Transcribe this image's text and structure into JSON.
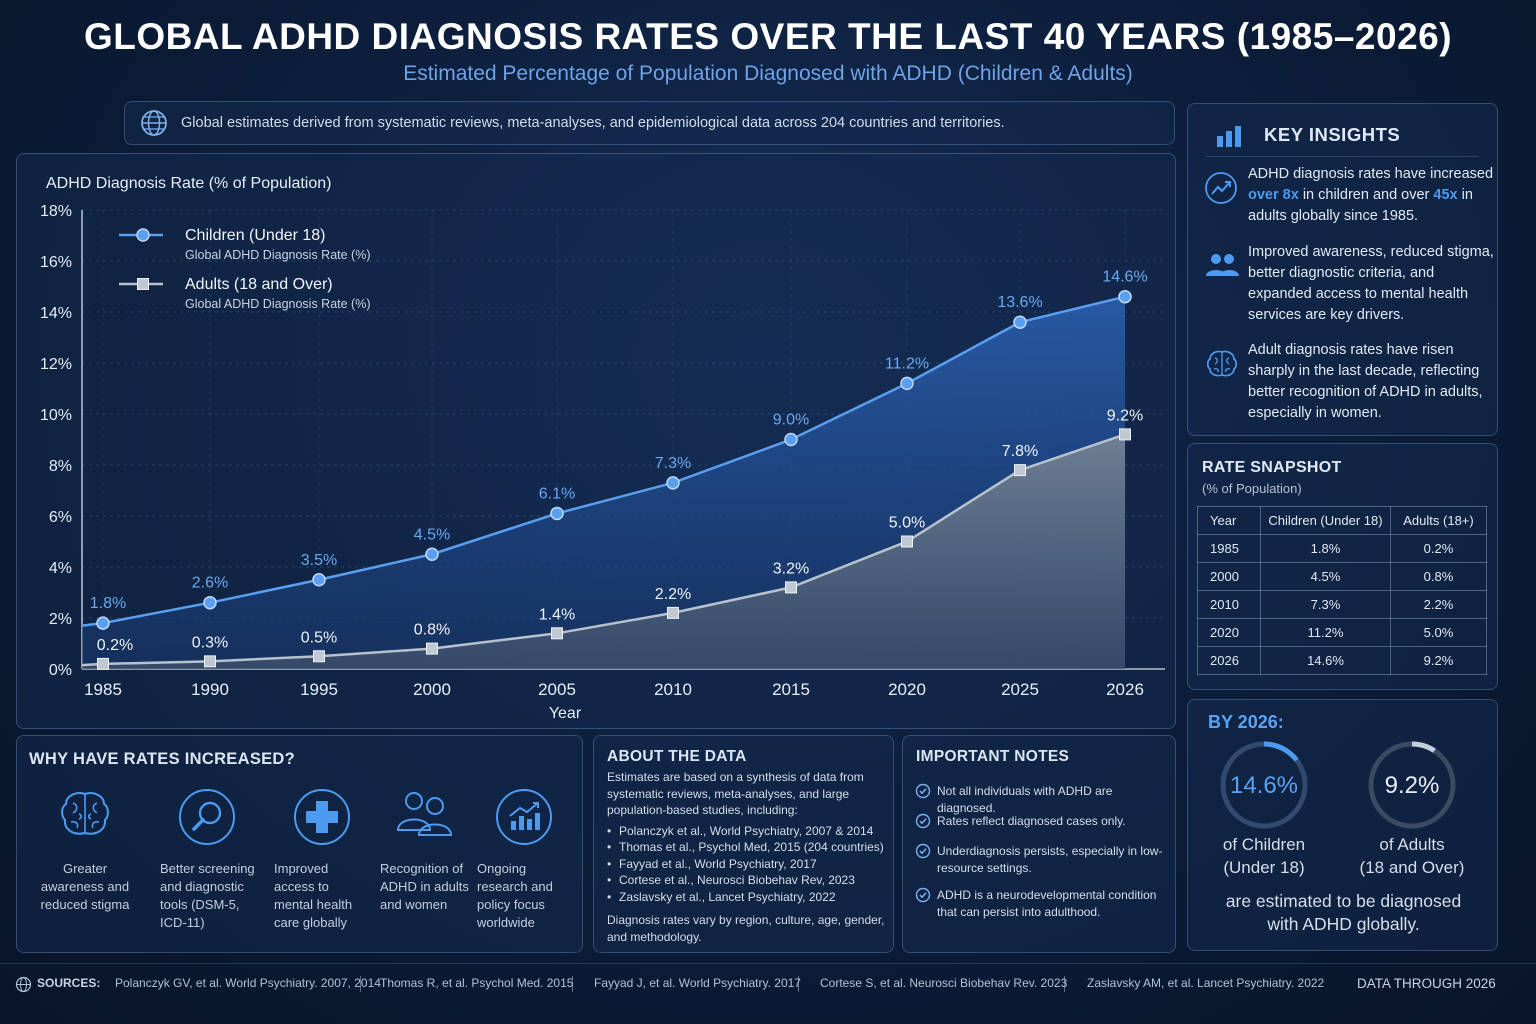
{
  "title": "GLOBAL ADHD DIAGNOSIS RATES OVER THE LAST 40 YEARS (1985–2026)",
  "subtitle": "Estimated Percentage of Population Diagnosed with ADHD (Children & Adults)",
  "info_text": "Global estimates derived from systematic reviews, meta-analyses, and epidemiological data across 204 countries and territories.",
  "colors": {
    "children": "#5a9ff0",
    "adults": "#b8c2cf",
    "accent": "#4d9bf0"
  },
  "chart_data": {
    "type": "area",
    "ylabel": "ADHD Diagnosis Rate (% of Population)",
    "xlabel": "Year",
    "categories": [
      "1985",
      "1990",
      "1995",
      "2000",
      "2005",
      "2010",
      "2015",
      "2020",
      "2025",
      "2026"
    ],
    "ylim": [
      0,
      18
    ],
    "yticks": [
      "0%",
      "2%",
      "4%",
      "6%",
      "8%",
      "10%",
      "12%",
      "14%",
      "16%",
      "18%"
    ],
    "grid": true,
    "legend_position": "top-left",
    "series": [
      {
        "name": "Children (Under 18)",
        "description": "Global ADHD Diagnosis Rate (%)",
        "marker": "circle",
        "values": [
          1.8,
          2.6,
          3.5,
          4.5,
          6.1,
          7.3,
          9.0,
          11.2,
          13.6,
          14.6
        ],
        "labels": [
          "1.8%",
          "2.6%",
          "3.5%",
          "4.5%",
          "6.1%",
          "7.3%",
          "9.0%",
          "11.2%",
          "13.6%",
          "14.6%"
        ]
      },
      {
        "name": "Adults (18 and Over)",
        "description": "Global ADHD Diagnosis Rate (%)",
        "marker": "square",
        "values": [
          0.2,
          0.3,
          0.5,
          0.8,
          1.4,
          2.2,
          3.2,
          5.0,
          7.8,
          9.2
        ],
        "labels": [
          "0.2%",
          "0.3%",
          "0.5%",
          "0.8%",
          "1.4%",
          "2.2%",
          "3.2%",
          "5.0%",
          "7.8%",
          "9.2%"
        ]
      }
    ]
  },
  "insights": {
    "title": "KEY INSIGHTS",
    "items": [
      {
        "icon": "trend-up-icon",
        "pre": "ADHD diagnosis rates have increased ",
        "hl1": "over 8x",
        "mid": " in children and over ",
        "hl2": "45x",
        "post": " in adults globally since 1985."
      },
      {
        "icon": "people-icon",
        "text": "Improved awareness, reduced stigma, better diagnostic criteria, and expanded access to mental health services are key drivers."
      },
      {
        "icon": "brain-icon",
        "text": "Adult diagnosis rates have risen sharply in the last decade, reflecting better recognition of ADHD in adults, especially in women."
      }
    ]
  },
  "snapshot": {
    "title": "RATE SNAPSHOT",
    "subtitle": "(% of Population)",
    "headers": [
      "Year",
      "Children (Under 18)",
      "Adults (18+)"
    ],
    "rows": [
      [
        "1985",
        "1.8%",
        "0.2%"
      ],
      [
        "2000",
        "4.5%",
        "0.8%"
      ],
      [
        "2010",
        "7.3%",
        "2.2%"
      ],
      [
        "2020",
        "11.2%",
        "5.0%"
      ],
      [
        "2026",
        "14.6%",
        "9.2%"
      ]
    ]
  },
  "by2026": {
    "title": "BY 2026:",
    "children_value": "14.6%",
    "children_fraction": 0.146,
    "children_label_1": "of Children",
    "children_label_2": "(Under 18)",
    "adults_value": "9.2%",
    "adults_fraction": 0.092,
    "adults_label_1": "of Adults",
    "adults_label_2": "(18 and Over)",
    "footer_1": "are estimated to be diagnosed",
    "footer_2": "with ADHD globally."
  },
  "why": {
    "title": "WHY HAVE RATES INCREASED?",
    "items": [
      {
        "icon": "brain-icon",
        "text": "Greater awareness and reduced stigma"
      },
      {
        "icon": "magnifier-icon",
        "text": "Better screening and diagnostic tools (DSM-5, ICD-11)"
      },
      {
        "icon": "medical-cross-icon",
        "text": "Improved access to mental health care globally"
      },
      {
        "icon": "people-icon",
        "text": "Recognition of ADHD in adults and women"
      },
      {
        "icon": "research-chart-icon",
        "text": "Ongoing research and policy focus worldwide"
      }
    ]
  },
  "about": {
    "title": "ABOUT THE DATA",
    "intro": "Estimates are based on a synthesis of data from systematic reviews, meta-analyses, and large population-based studies, including:",
    "refs": [
      "Polanczyk et al., World Psychiatry, 2007 & 2014",
      "Thomas et al., Psychol Med, 2015 (204 countries)",
      "Fayyad et al., World Psychiatry, 2017",
      "Cortese et al., Neurosci Biobehav Rev, 2023",
      "Zaslavsky et al., Lancet Psychiatry, 2022"
    ],
    "footer": "Diagnosis rates vary by region, culture, age, gender, and methodology."
  },
  "notes": {
    "title": "IMPORTANT NOTES",
    "items": [
      "Not all individuals with ADHD are diagnosed.",
      "Rates reflect diagnosed cases only.",
      "Underdiagnosis persists, especially in low-resource settings.",
      "ADHD is a neurodevelopmental condition that can persist into adulthood."
    ]
  },
  "footer": {
    "label": "SOURCES:",
    "sources": [
      "Polanczyk GV, et al. World Psychiatry. 2007, 2014",
      "Thomas R, et al. Psychol Med. 2015",
      "Fayyad J, et al. World Psychiatry. 2017",
      "Cortese S, et al. Neurosci Biobehav Rev. 2023",
      "Zaslavsky AM, et al. Lancet Psychiatry. 2022"
    ],
    "right": "DATA THROUGH 2026"
  }
}
